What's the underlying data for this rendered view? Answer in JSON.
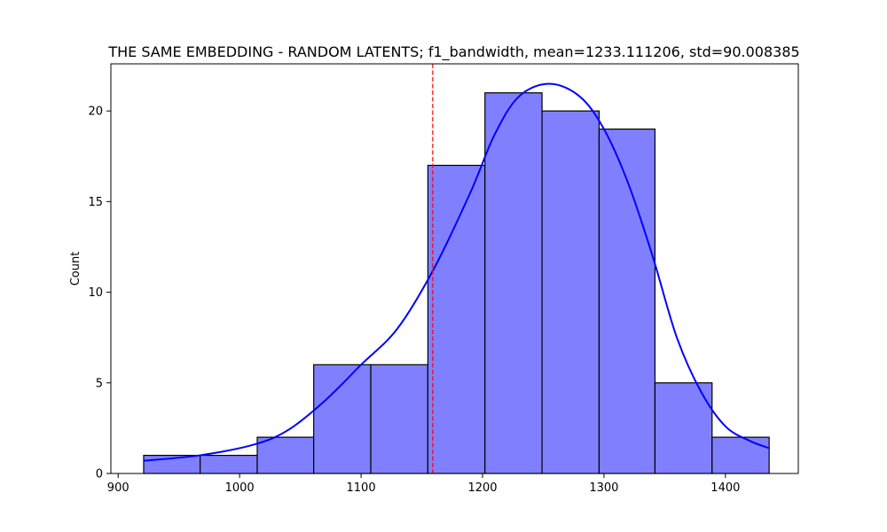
{
  "chart_data": {
    "type": "bar",
    "title": "THE SAME EMBEDDING - RANDOM LATENTS; f1_bandwidth, mean=1233.111206, std=90.008385",
    "xlabel": "",
    "ylabel": "Count",
    "xlim": [
      894,
      1460
    ],
    "ylim": [
      0,
      22.6
    ],
    "x_ticks": [
      900,
      1000,
      1100,
      1200,
      1300,
      1400
    ],
    "y_ticks": [
      0,
      5,
      10,
      15,
      20
    ],
    "bins": [
      {
        "x0": 921,
        "x1": 967.5,
        "count": 1
      },
      {
        "x0": 967.5,
        "x1": 1014.5,
        "count": 1
      },
      {
        "x0": 1014.5,
        "x1": 1061,
        "count": 2
      },
      {
        "x0": 1061,
        "x1": 1108,
        "count": 6
      },
      {
        "x0": 1108,
        "x1": 1155,
        "count": 6
      },
      {
        "x0": 1155,
        "x1": 1202,
        "count": 17
      },
      {
        "x0": 1202,
        "x1": 1249,
        "count": 21
      },
      {
        "x0": 1249,
        "x1": 1296,
        "count": 20
      },
      {
        "x0": 1296,
        "x1": 1342,
        "count": 19
      },
      {
        "x0": 1342,
        "x1": 1389,
        "count": 5
      },
      {
        "x0": 1389,
        "x1": 1436,
        "count": 2
      }
    ],
    "kde": {
      "x": [
        921,
        967,
        1012,
        1040,
        1070,
        1100,
        1130,
        1160,
        1190,
        1210,
        1230,
        1255,
        1280,
        1300,
        1320,
        1340,
        1360,
        1380,
        1400,
        1420,
        1436
      ],
      "y": [
        0.7,
        1.0,
        1.6,
        2.4,
        4.0,
        6.0,
        8.0,
        11.3,
        15.5,
        18.7,
        20.8,
        21.5,
        20.8,
        19.0,
        16.0,
        12.0,
        7.5,
        4.5,
        2.6,
        1.8,
        1.4
      ]
    },
    "vline": {
      "x": 1159
    },
    "bar_fill": "#8080ff",
    "bar_edge": "#000000",
    "kde_color": "#0000ff",
    "vline_color": "#ff0000",
    "grid": false,
    "legend": "none"
  }
}
